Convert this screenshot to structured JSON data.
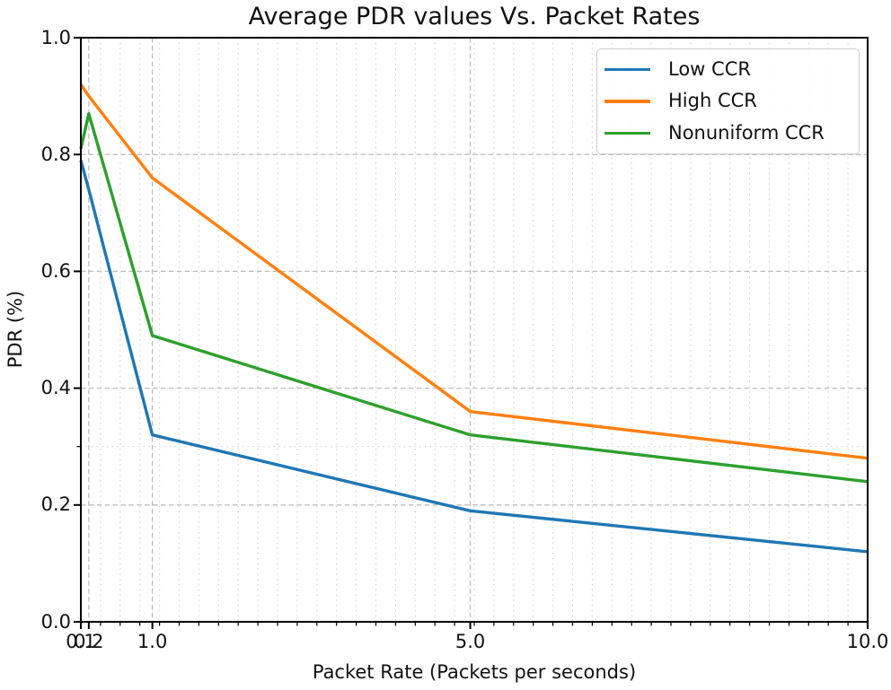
{
  "chart_data": {
    "type": "line",
    "title": "Average PDR values Vs. Packet Rates",
    "xlabel": "Packet Rate (Packets per seconds)",
    "ylabel": "PDR (%)",
    "xlim": [
      0.1,
      10.0
    ],
    "ylim": [
      0.0,
      1.0
    ],
    "x": [
      0.1,
      0.2,
      1.0,
      5.0,
      10.0
    ],
    "xticks": [
      0.1,
      0.2,
      1.0,
      5.0,
      10.0
    ],
    "xtick_labels": [
      "0.1",
      "0.2",
      "1.0",
      "5.0",
      "10.0"
    ],
    "yticks": [
      0.0,
      0.2,
      0.4,
      0.6,
      0.8,
      1.0
    ],
    "ytick_labels": [
      "0.0",
      "0.2",
      "0.4",
      "0.6",
      "0.8",
      "1.0"
    ],
    "grid": {
      "major_style": "dashed",
      "minor_style": "dotted",
      "x_minor_step_units": 0.2475,
      "y_minor_gridlines": [
        0.3
      ],
      "major_color": "#bdbdbd",
      "minor_color": "#cfcfcf"
    },
    "legend_position": "upper right",
    "series": [
      {
        "name": "Low CCR",
        "color": "#1f77b4",
        "values": [
          0.79,
          0.74,
          0.32,
          0.19,
          0.12
        ]
      },
      {
        "name": "High CCR",
        "color": "#ff7f0e",
        "values": [
          0.92,
          0.9,
          0.76,
          0.36,
          0.28
        ]
      },
      {
        "name": "Nonuniform CCR",
        "color": "#2ca02c",
        "values": [
          0.81,
          0.87,
          0.49,
          0.32,
          0.24
        ]
      }
    ]
  }
}
